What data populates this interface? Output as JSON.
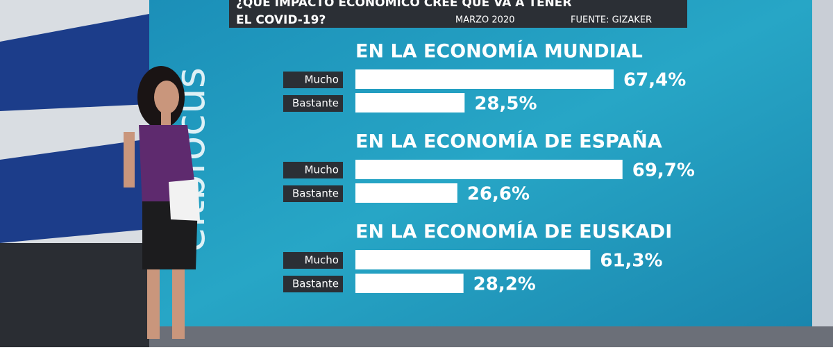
{
  "header": {
    "title_lines": [
      "¿QUÉ IMPACTO ECONÓMICO CREE QUE VA A TENER",
      "EL COVID-19?"
    ],
    "date": "MARZO 2020",
    "source": "FUENTE: GIZAKER"
  },
  "logo": "eitbfocus",
  "chart_data": [
    {
      "type": "bar",
      "orientation": "horizontal",
      "title": "EN LA ECONOMÍA MUNDIAL",
      "categories": [
        "Mucho",
        "Bastante"
      ],
      "values": [
        67.4,
        28.5
      ],
      "value_labels": [
        "67,4%",
        "28,5%"
      ],
      "color": "#ffffff"
    },
    {
      "type": "bar",
      "orientation": "horizontal",
      "title": "EN LA ECONOMÍA DE ESPAÑA",
      "categories": [
        "Mucho",
        "Bastante"
      ],
      "values": [
        69.7,
        26.6
      ],
      "value_labels": [
        "69,7%",
        "26,6%"
      ],
      "color": "#ffffff"
    },
    {
      "type": "bar",
      "orientation": "horizontal",
      "title": "EN LA ECONOMÍA DE EUSKADI",
      "categories": [
        "Mucho",
        "Bastante"
      ],
      "values": [
        61.3,
        28.2
      ],
      "value_labels": [
        "61,3%",
        "28,2%"
      ],
      "color": "#ffffff"
    }
  ]
}
